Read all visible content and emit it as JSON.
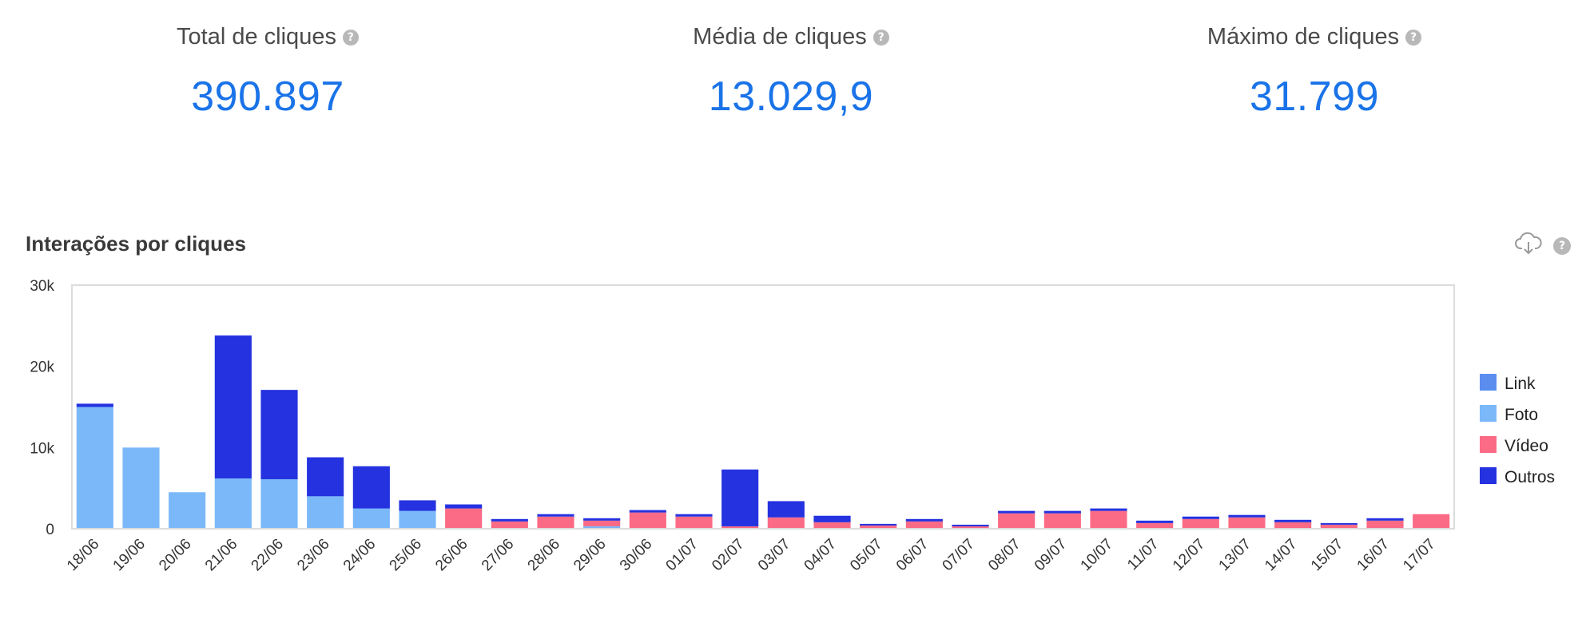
{
  "kpis": [
    {
      "title": "Total de cliques",
      "value": "390.897"
    },
    {
      "title": "Média de cliques",
      "value": "13.029,9"
    },
    {
      "title": "Máximo de cliques",
      "value": "31.799"
    }
  ],
  "help_glyph": "?",
  "chart_title": "Interações por cliques",
  "icons": {
    "download": "cloud-download-icon",
    "help": "help-icon"
  },
  "chart_data": {
    "type": "bar",
    "stacked": true,
    "title": "Interações por cliques",
    "xlabel": "",
    "ylabel": "",
    "ylim": [
      0,
      30000
    ],
    "yticks": [
      0,
      10000,
      20000,
      30000
    ],
    "ytick_labels": [
      "0",
      "10k",
      "20k",
      "30k"
    ],
    "legend_position": "right",
    "grid": false,
    "categories": [
      "18/06",
      "19/06",
      "20/06",
      "21/06",
      "22/06",
      "23/06",
      "24/06",
      "25/06",
      "26/06",
      "27/06",
      "28/06",
      "29/06",
      "30/06",
      "01/07",
      "02/07",
      "03/07",
      "04/07",
      "05/07",
      "06/07",
      "07/07",
      "08/07",
      "09/07",
      "10/07",
      "11/07",
      "12/07",
      "13/07",
      "14/07",
      "15/07",
      "16/07",
      "17/07"
    ],
    "series": [
      {
        "name": "Link",
        "color": "#5b8def",
        "values": [
          0,
          0,
          0,
          0,
          0,
          0,
          0,
          0,
          0,
          0,
          0,
          0,
          0,
          0,
          0,
          0,
          0,
          0,
          0,
          0,
          0,
          0,
          0,
          0,
          0,
          0,
          0,
          0,
          0,
          0
        ]
      },
      {
        "name": "Foto",
        "color": "#7ab8fa",
        "values": [
          15000,
          10000,
          4500,
          6200,
          6100,
          4000,
          2500,
          2200,
          0,
          0,
          0,
          300,
          0,
          0,
          0,
          0,
          0,
          0,
          0,
          0,
          0,
          0,
          0,
          0,
          0,
          0,
          0,
          0,
          0,
          0
        ]
      },
      {
        "name": "Vídeo",
        "color": "#fb6b86",
        "values": [
          0,
          0,
          0,
          0,
          0,
          0,
          0,
          0,
          2500,
          900,
          1500,
          700,
          2000,
          1500,
          300,
          1400,
          800,
          400,
          900,
          300,
          1900,
          1900,
          2200,
          700,
          1200,
          1400,
          800,
          500,
          1000,
          1800
        ]
      },
      {
        "name": "Outros",
        "color": "#2432e0",
        "values": [
          400,
          0,
          0,
          17600,
          11000,
          4800,
          5200,
          1300,
          500,
          300,
          300,
          300,
          300,
          300,
          7000,
          2000,
          800,
          200,
          300,
          200,
          300,
          300,
          300,
          300,
          300,
          300,
          300,
          200,
          300,
          0
        ]
      }
    ]
  }
}
